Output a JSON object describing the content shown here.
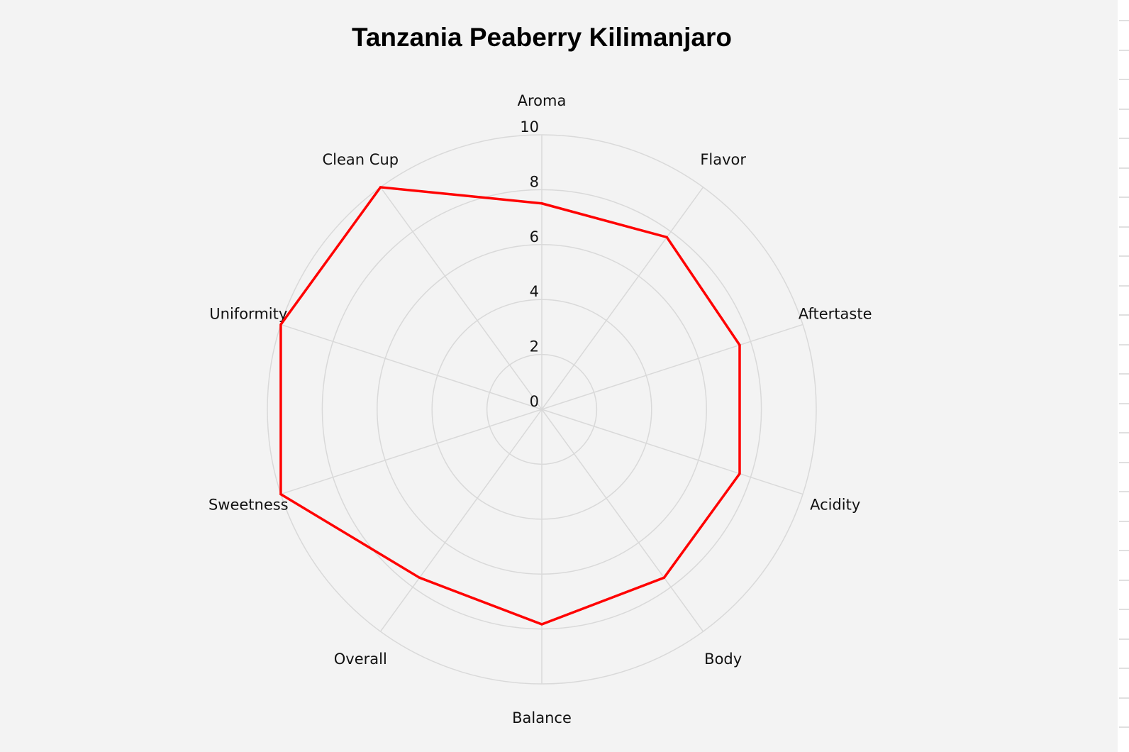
{
  "chart_data": {
    "type": "radar",
    "title": "Tanzania Peaberry Kilimanjaro",
    "categories": [
      "Aroma",
      "Flavor",
      "Aftertaste",
      "Acidity",
      "Body",
      "Balance",
      "Overall",
      "Sweetness",
      "Uniformity",
      "Clean Cup"
    ],
    "values": [
      7.5,
      7.75,
      7.58,
      7.58,
      7.58,
      7.83,
      7.58,
      10,
      10,
      10
    ],
    "radial_range": [
      0,
      10
    ],
    "radial_ticks": [
      "0",
      "2",
      "4",
      "6",
      "8",
      "10"
    ],
    "grid": true,
    "legend": "none",
    "colors": {
      "series": "#ff0000",
      "grid": "#d9d9d9",
      "background": "#f3f3f3"
    }
  }
}
